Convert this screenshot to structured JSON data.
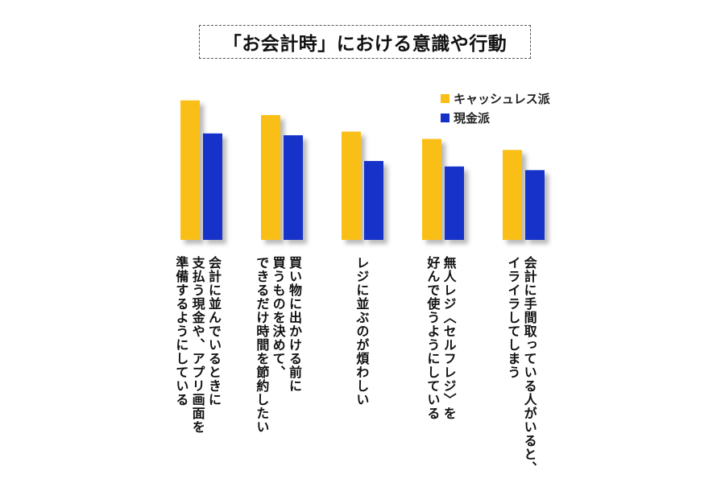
{
  "chart_data": {
    "type": "bar",
    "title": "「お会計時」における意識や行動",
    "categories": [
      [
        "会計に並んでいるときに",
        "支払う現金や、アプリ画面を",
        "準備するようにしている"
      ],
      [
        "買い物に出かける前に",
        "買うものを決めて、",
        "できるだけ時間を節約したい"
      ],
      [
        "レジに並ぶのが煩わしい"
      ],
      [
        "無人レジ〈セルフレジ〉を",
        "好んで使うようにしている"
      ],
      [
        "会計に手間取っている人がいると、",
        "イライラしてしまう"
      ]
    ],
    "series": [
      {
        "name": "キャッシュレス派",
        "values": [
          76,
          68,
          59,
          55,
          49
        ],
        "color": "#FABF14"
      },
      {
        "name": "現金派",
        "values": [
          58,
          57,
          43,
          40,
          38
        ],
        "color": "#1432C8"
      }
    ],
    "ylim": [
      0,
      100
    ],
    "legend_position": "top-right",
    "grid": false
  }
}
